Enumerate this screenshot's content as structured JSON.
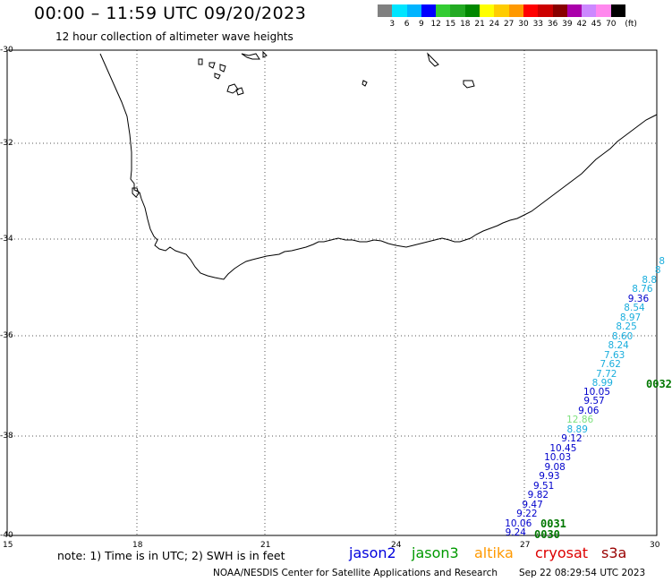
{
  "header": {
    "title": "00:00 – 11:59 UTC 09/20/2023",
    "subtitle": "12 hour collection of altimeter wave heights"
  },
  "colorbar": {
    "unit": "(ft)",
    "labels": [
      "3",
      "6",
      "9",
      "12",
      "15",
      "18",
      "21",
      "24",
      "27",
      "30",
      "33",
      "36",
      "39",
      "42",
      "45",
      "70"
    ],
    "colors": [
      "#808080",
      "#00e5ff",
      "#00b4ff",
      "#0000ff",
      "#33cc33",
      "#22aa22",
      "#008800",
      "#ffff00",
      "#ffcc00",
      "#ff9900",
      "#ff0000",
      "#cc0000",
      "#880000",
      "#aa00aa",
      "#cc88ff",
      "#ff88ee",
      "#000000"
    ]
  },
  "axes": {
    "lat_labels": [
      "-30",
      "-32",
      "-34",
      "-36",
      "-38",
      "-40"
    ],
    "lon_labels": [
      "15",
      "18",
      "21",
      "24",
      "27",
      "30"
    ]
  },
  "observations": {
    "upper_track": [
      {
        "text": "8",
        "satellite": "jason3"
      },
      {
        "text": "8",
        "satellite": "jason3"
      },
      {
        "text": "8.8",
        "satellite": "jason3"
      },
      {
        "text": "8.76",
        "satellite": "jason3"
      },
      {
        "text": "9.36",
        "satellite": "jason2"
      },
      {
        "text": "8.54",
        "satellite": "jason3"
      },
      {
        "text": "8.97",
        "satellite": "jason3"
      },
      {
        "text": "8.25",
        "satellite": "jason3"
      },
      {
        "text": "8.60",
        "satellite": "jason3"
      },
      {
        "text": "8.24",
        "satellite": "jason3"
      },
      {
        "text": "7.63",
        "satellite": "jason3"
      },
      {
        "text": "7.62",
        "satellite": "jason3"
      },
      {
        "text": "7.72",
        "satellite": "jason3"
      },
      {
        "text": "8.99",
        "satellite": "jason3"
      }
    ],
    "lower_track": [
      {
        "text": "10.05",
        "satellite": "jason2"
      },
      {
        "text": "9.57",
        "satellite": "jason2"
      },
      {
        "text": "9.06",
        "satellite": "jason2"
      },
      {
        "text": "12.86",
        "satellite": "light"
      },
      {
        "text": "8.89",
        "satellite": "jason3"
      },
      {
        "text": "9.12",
        "satellite": "jason2"
      },
      {
        "text": "10.45",
        "satellite": "jason2"
      },
      {
        "text": "10.03",
        "satellite": "jason2"
      },
      {
        "text": "9.08",
        "satellite": "jason2"
      },
      {
        "text": "9.93",
        "satellite": "jason2"
      },
      {
        "text": "9.51",
        "satellite": "jason2"
      },
      {
        "text": "9.82",
        "satellite": "jason2"
      },
      {
        "text": "9.47",
        "satellite": "jason2"
      },
      {
        "text": "9.22",
        "satellite": "jason2"
      },
      {
        "text": "10.06",
        "satellite": "jason2"
      },
      {
        "text": "9.24",
        "satellite": "jason2"
      }
    ],
    "time_labels": [
      "0032",
      "0031",
      "0030"
    ]
  },
  "obs_colors": {
    "jason2": "#0000cc",
    "jason3": "#1aaedd",
    "light": "#7ee07e",
    "time": "#007700"
  },
  "footer": {
    "note": "note: 1) Time is in UTC; 2) SWH is in feet",
    "legend": [
      {
        "name": "jason2",
        "color": "#0000dd"
      },
      {
        "name": "jason3",
        "color": "#009900"
      },
      {
        "name": "altika",
        "color": "#ff9900"
      },
      {
        "name": "cryosat",
        "color": "#dd0000"
      },
      {
        "name": "s3a",
        "color": "#990000"
      }
    ],
    "credit": "NOAA/NESDIS Center for Satellite Applications and Research",
    "timestamp": "Sep 22 08:29:54 UTC 2023"
  }
}
